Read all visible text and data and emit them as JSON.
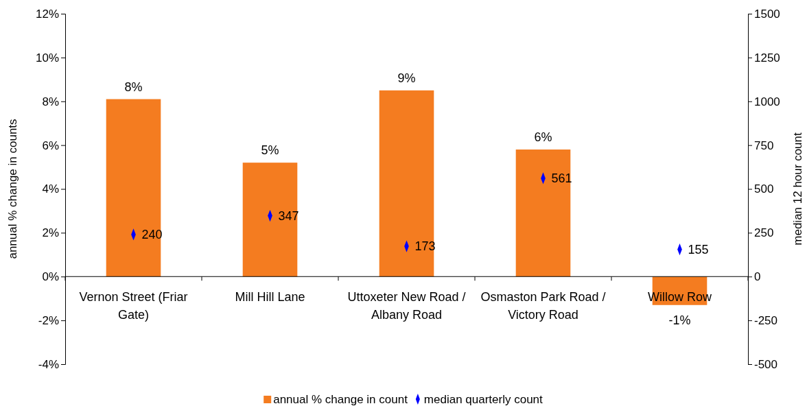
{
  "chart_data": {
    "type": "bar",
    "ylabel": "annual % change in counts",
    "y2label": "median 12 hour count",
    "categories": [
      "Vernon Street  (Friar Gate)",
      "Mill Hill Lane",
      "Uttoxeter New Road / Albany Road",
      "Osmaston Park Road / Victory Road",
      "Willow Row"
    ],
    "series": [
      {
        "name": "annual % change in count",
        "color": "#f47c20",
        "values": [
          8.1,
          5.2,
          8.5,
          5.8,
          -1.3
        ],
        "value_labels": [
          "8%",
          "5%",
          "9%",
          "6%",
          "-1%"
        ]
      },
      {
        "name": "median quarterly count",
        "type": "scatter",
        "axis": "y2",
        "color": "#0000ff",
        "values": [
          240,
          347,
          173,
          561,
          155
        ],
        "value_labels": [
          "240",
          "347",
          "173",
          "561",
          "155"
        ]
      }
    ],
    "marker": "diamond",
    "ylim": [
      -4,
      12
    ],
    "yticks": [
      {
        "value": -4,
        "label": "-4%"
      },
      {
        "value": -2,
        "label": "-2%"
      },
      {
        "value": 0,
        "label": "0%"
      },
      {
        "value": 2,
        "label": "2%"
      },
      {
        "value": 4,
        "label": "4%"
      },
      {
        "value": 6,
        "label": "6%"
      },
      {
        "value": 8,
        "label": "8%"
      },
      {
        "value": 10,
        "label": "10%"
      },
      {
        "value": 12,
        "label": "12%"
      }
    ],
    "y2lim": [
      -500,
      1500
    ],
    "y2ticks": [
      -500,
      -250,
      0,
      250,
      500,
      750,
      1000,
      1250,
      1500
    ],
    "grid": false,
    "legend": "bottom"
  }
}
